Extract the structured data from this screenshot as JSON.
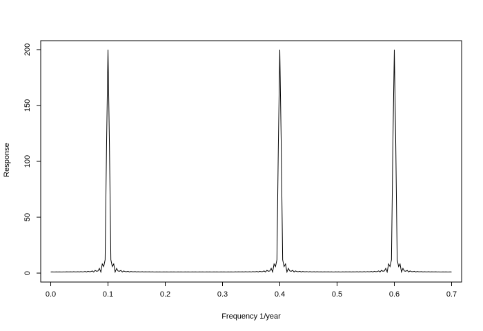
{
  "chart_data": {
    "type": "line",
    "title": "",
    "xlabel": "Frequency 1/year",
    "ylabel": "Response",
    "xlim": [
      -0.0175,
      0.7175
    ],
    "ylim": [
      -8,
      208
    ],
    "x_ticks": [
      "0.0",
      "0.1",
      "0.2",
      "0.3",
      "0.4",
      "0.5",
      "0.6",
      "0.7"
    ],
    "y_ticks": [
      "0",
      "50",
      "100",
      "150",
      "200"
    ],
    "grid": false,
    "legend": "none",
    "line_color": "#000000",
    "peaks": [
      {
        "x": 0.1,
        "y": 200
      },
      {
        "x": 0.4,
        "y": 200
      },
      {
        "x": 0.6,
        "y": 200
      }
    ],
    "series": [
      {
        "x_start": 0.0,
        "x_end": 0.7,
        "x_step": 0.0025,
        "description_note": "",
        "values": []
      }
    ]
  }
}
